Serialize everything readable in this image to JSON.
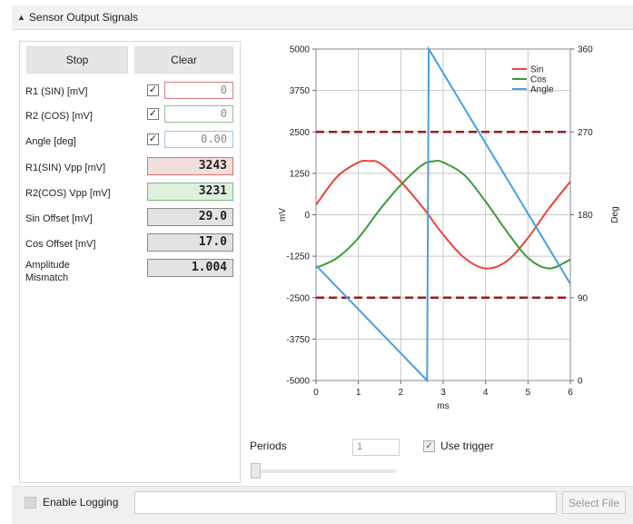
{
  "panel": {
    "title": "Sensor Output Signals"
  },
  "buttons": {
    "stop": "Stop",
    "clear": "Clear"
  },
  "rows": [
    {
      "label": "R1 (SIN) [mV]",
      "checked": true,
      "value": "0",
      "border": "#e07a7a"
    },
    {
      "label": "R2 (COS) [mV]",
      "checked": true,
      "value": "0",
      "border": "#8cc48c"
    },
    {
      "label": "Angle [deg]",
      "checked": true,
      "value": "0.00",
      "border": "#9ec3e6"
    }
  ],
  "readouts": [
    {
      "label": "R1(SIN) Vpp [mV]",
      "value": "3243",
      "bg": "#f3dede",
      "border": "#d87070"
    },
    {
      "label": "R2(COS) Vpp [mV]",
      "value": "3231",
      "bg": "#e0efe0",
      "border": "#7fb87f"
    },
    {
      "label": "Sin Offset [mV]",
      "value": "29.0",
      "bg": "#e2e2e2",
      "border": "#8a8a8a"
    },
    {
      "label": "Cos Offset [mV]",
      "value": "17.0",
      "bg": "#e2e2e2",
      "border": "#8a8a8a"
    },
    {
      "label": "Amplitude\nMismatch",
      "value": "1.004",
      "bg": "#e2e2e2",
      "border": "#8a8a8a"
    }
  ],
  "controls": {
    "periods_label": "Periods",
    "periods_value": "1",
    "use_trigger_label": "Use trigger",
    "use_trigger_checked": true,
    "slider_value": 0
  },
  "logging": {
    "enable_label": "Enable Logging",
    "enabled": false,
    "path": "",
    "select_file_label": "Select File"
  },
  "chart_data": {
    "type": "line",
    "xlabel": "ms",
    "ylabel": "mV",
    "y2label": "Deg",
    "xlim": [
      0,
      6
    ],
    "ylim": [
      -5000,
      5000
    ],
    "y2lim": [
      0,
      360
    ],
    "xticks": [
      "0",
      "1",
      "2",
      "3",
      "4",
      "5",
      "6"
    ],
    "yticks": [
      "5000",
      "3750",
      "2500",
      "1250",
      "0",
      "-1250",
      "-2500",
      "-3750",
      "-5000"
    ],
    "y2ticks": [
      "360",
      "270",
      "180",
      "90",
      "0"
    ],
    "grid": true,
    "legend_position": "top-right",
    "series": [
      {
        "name": "Sin",
        "color": "#e8453c",
        "axis": "left",
        "x": [
          0,
          0.5,
          1,
          1.25,
          1.5,
          2,
          2.5,
          2.65,
          3,
          3.5,
          4,
          4.5,
          5,
          5.5,
          6
        ],
        "y": [
          300,
          1150,
          1580,
          1620,
          1560,
          1000,
          250,
          0,
          -600,
          -1300,
          -1620,
          -1400,
          -700,
          200,
          1000
        ]
      },
      {
        "name": "Cos",
        "color": "#3a9a3a",
        "axis": "left",
        "x": [
          0,
          0.5,
          1,
          1.5,
          2,
          2.5,
          2.8,
          3,
          3.5,
          4,
          4.5,
          5,
          5.5,
          6
        ],
        "y": [
          -1600,
          -1300,
          -700,
          150,
          900,
          1500,
          1620,
          1580,
          1200,
          400,
          -500,
          -1300,
          -1620,
          -1350
        ]
      },
      {
        "name": "Angle",
        "color": "#4a9ee0",
        "axis": "right",
        "x": [
          0,
          2.62,
          2.62,
          2.66,
          6
        ],
        "y": [
          125,
          0,
          0,
          360,
          105
        ]
      }
    ],
    "reference_lines": [
      {
        "y": 2500,
        "color": "#9b1c1c"
      },
      {
        "y": -2500,
        "color": "#9b1c1c"
      }
    ]
  }
}
